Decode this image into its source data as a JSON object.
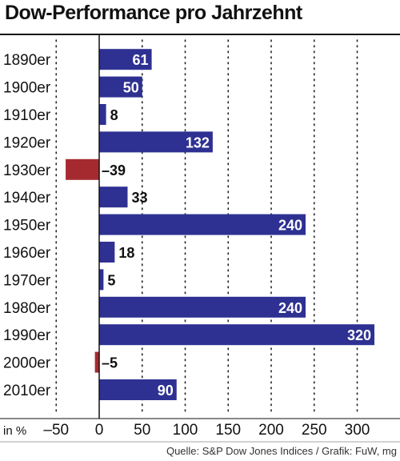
{
  "header": {
    "title": "Dow-Performance pro Jahrzehnt"
  },
  "footer": {
    "source": "Quelle: S&P Dow Jones Indices / Grafik: FuW, mg"
  },
  "colors": {
    "positive": "#2e3192",
    "negative": "#a52a2f",
    "label_inside": "#ffffff",
    "label_outside": "#111111"
  },
  "chart_data": {
    "type": "bar",
    "orientation": "horizontal",
    "title": "Dow-Performance pro Jahrzehnt",
    "categories": [
      "1890er",
      "1900er",
      "1910er",
      "1920er",
      "1930er",
      "1940er",
      "1950er",
      "1960er",
      "1970er",
      "1980er",
      "1990er",
      "2000er",
      "2010er"
    ],
    "values": [
      61,
      50,
      8,
      132,
      -39,
      33,
      240,
      18,
      5,
      240,
      320,
      -5,
      90
    ],
    "value_labels": [
      "61",
      "50",
      "8",
      "132",
      "–39",
      "33",
      "240",
      "18",
      "5",
      "240",
      "320",
      "–5",
      "90"
    ],
    "xlabel": "in %",
    "ylabel": "",
    "xlim": [
      -50,
      350
    ],
    "x_ticks": [
      -50,
      0,
      50,
      100,
      150,
      200,
      250,
      300
    ],
    "x_tick_labels": [
      "–50",
      "0",
      "50",
      "100",
      "150",
      "200",
      "250",
      "300"
    ],
    "grid": "vertical dotted",
    "legend": "none"
  }
}
